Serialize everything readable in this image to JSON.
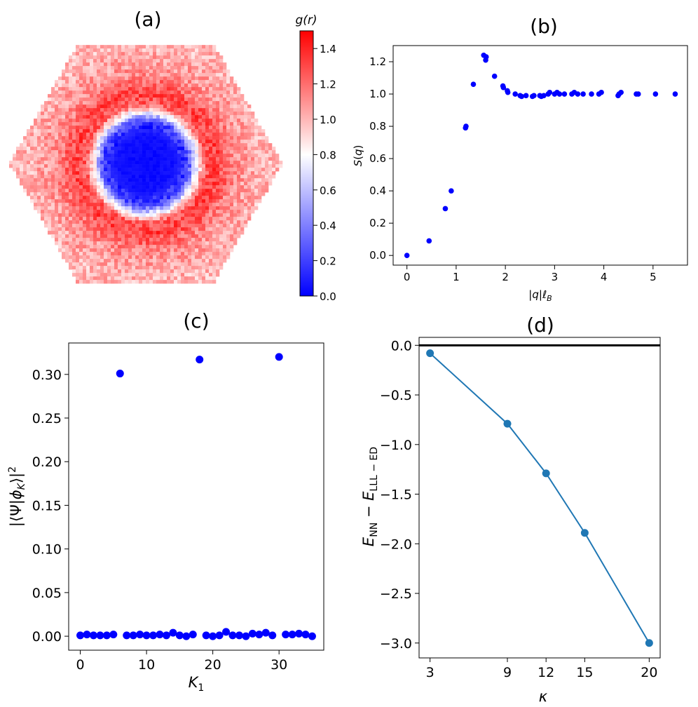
{
  "chart_data": [
    {
      "panel": "a",
      "type": "heatmap",
      "title": "(a)",
      "colorbar_label": "g(r)",
      "colormap": [
        "#0000ff",
        "#ffffff",
        "#ff0000"
      ],
      "vmin": 0.0,
      "vmax": 1.5,
      "colorbar_ticks": [
        0.0,
        0.2,
        0.4,
        0.6,
        0.8,
        1.0,
        1.2,
        1.4
      ],
      "colorbar_tick_labels": [
        "0.0",
        "0.2",
        "0.4",
        "0.6",
        "0.8",
        "1.0",
        "1.2",
        "1.4"
      ],
      "domain_shape": "hexagon",
      "profile": {
        "r": [
          0.0,
          0.4,
          0.6,
          0.7,
          0.85,
          1.0,
          1.3,
          1.7
        ],
        "g": [
          0.02,
          0.05,
          0.2,
          0.65,
          1.25,
          1.32,
          1.1,
          1.0
        ]
      }
    },
    {
      "panel": "b",
      "type": "scatter",
      "title": "(b)",
      "xlabel": "|q|ℓ_B",
      "ylabel": "S(q)",
      "xlim": [
        -0.28,
        5.7
      ],
      "ylim": [
        -0.06,
        1.3
      ],
      "xticks": [
        0,
        1,
        2,
        3,
        4,
        5
      ],
      "xtick_labels": [
        "0",
        "1",
        "2",
        "3",
        "4",
        "5"
      ],
      "yticks": [
        0.0,
        0.2,
        0.4,
        0.6,
        0.8,
        1.0,
        1.2
      ],
      "ytick_labels": [
        "0.0",
        "0.2",
        "0.4",
        "0.6",
        "0.8",
        "1.0",
        "1.2"
      ],
      "color": "#0000ff",
      "x": [
        0.0,
        0.45,
        0.78,
        0.9,
        1.19,
        1.2,
        1.35,
        1.56,
        1.6,
        1.61,
        1.78,
        1.95,
        1.96,
        2.04,
        2.05,
        2.2,
        2.3,
        2.33,
        2.42,
        2.55,
        2.58,
        2.7,
        2.73,
        2.78,
        2.87,
        2.9,
        3.0,
        3.05,
        3.1,
        3.2,
        3.35,
        3.4,
        3.47,
        3.58,
        3.75,
        3.9,
        3.95,
        4.29,
        4.31,
        4.35,
        4.66,
        4.7,
        5.05,
        5.45
      ],
      "y": [
        0.0,
        0.09,
        0.29,
        0.4,
        0.79,
        0.8,
        1.06,
        1.24,
        1.21,
        1.23,
        1.11,
        1.05,
        1.04,
        1.02,
        1.01,
        1.0,
        0.99,
        0.985,
        0.99,
        0.985,
        0.99,
        0.99,
        0.985,
        0.99,
        1.0,
        1.01,
        1.0,
        1.01,
        1.0,
        1.0,
        1.0,
        1.01,
        1.0,
        1.0,
        1.0,
        1.0,
        1.01,
        0.99,
        1.0,
        1.01,
        1.0,
        1.0,
        1.0,
        1.0
      ]
    },
    {
      "panel": "c",
      "type": "scatter",
      "title": "(c)",
      "xlabel": "K₁",
      "ylabel": "|⟨Ψ|φ_K⟩|²",
      "xlim": [
        -1.75,
        36.75
      ],
      "ylim": [
        -0.016,
        0.336
      ],
      "xticks": [
        0,
        10,
        20,
        30
      ],
      "xtick_labels": [
        "0",
        "10",
        "20",
        "30"
      ],
      "yticks": [
        0.0,
        0.05,
        0.1,
        0.15,
        0.2,
        0.25,
        0.3
      ],
      "ytick_labels": [
        "0.00",
        "0.05",
        "0.10",
        "0.15",
        "0.20",
        "0.25",
        "0.30"
      ],
      "color": "#0000ff",
      "x": [
        0,
        1,
        2,
        3,
        4,
        5,
        6,
        7,
        8,
        9,
        10,
        11,
        12,
        13,
        14,
        15,
        16,
        17,
        18,
        19,
        20,
        21,
        22,
        23,
        24,
        25,
        26,
        27,
        28,
        29,
        30,
        31,
        32,
        33,
        34,
        35
      ],
      "y": [
        0.001,
        0.002,
        0.001,
        0.001,
        0.001,
        0.002,
        0.301,
        0.001,
        0.001,
        0.002,
        0.001,
        0.001,
        0.002,
        0.001,
        0.004,
        0.001,
        0.0,
        0.002,
        0.317,
        0.001,
        0.0,
        0.001,
        0.005,
        0.001,
        0.001,
        0.0,
        0.003,
        0.002,
        0.004,
        0.001,
        0.32,
        0.002,
        0.002,
        0.003,
        0.002,
        0.0
      ]
    },
    {
      "panel": "d",
      "type": "line",
      "title": "(d)",
      "xlabel": "κ",
      "ylabel": "E_NN − E_LLL−ED",
      "xlim": [
        2.15,
        20.85
      ],
      "ylim": [
        -3.15,
        0.08
      ],
      "xticks": [
        3,
        9,
        12,
        15,
        20
      ],
      "xtick_labels": [
        "3",
        "9",
        "12",
        "15",
        "20"
      ],
      "yticks": [
        0.0,
        -0.5,
        -1.0,
        -1.5,
        -2.0,
        -2.5,
        -3.0
      ],
      "ytick_labels": [
        "0.0",
        "−0.5",
        "−1.0",
        "−1.5",
        "−2.0",
        "−2.5",
        "−3.0"
      ],
      "color": "#1f77b4",
      "reference_line": 0.0,
      "x": [
        3,
        9,
        12,
        15,
        20
      ],
      "y": [
        -0.08,
        -0.79,
        -1.29,
        -1.89,
        -3.0
      ]
    }
  ]
}
